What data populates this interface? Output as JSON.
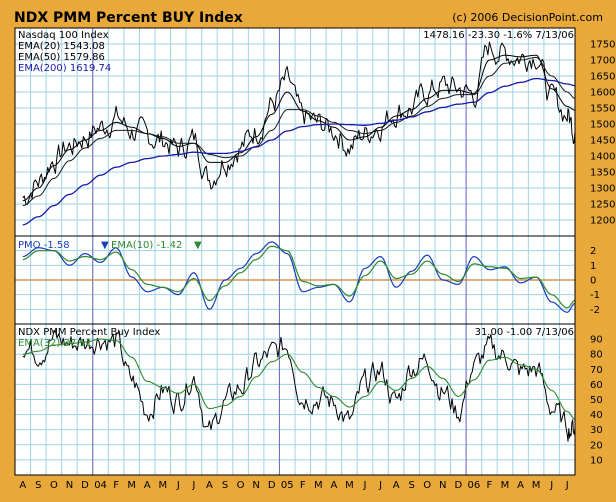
{
  "header": {
    "title": "NDX PMM Percent BUY Index",
    "copyright": "(c) 2006 DecisionPoint.com"
  },
  "colors": {
    "frame": "#e8a93a",
    "plot_bg": "#ffffff",
    "grid": "#9fd3e6",
    "vline": "#6b6bbf",
    "price": "#000000",
    "ema20": "#000000",
    "ema50": "#1a1a1a",
    "ema200": "#1a1aa8",
    "pmo": "#1a3cc0",
    "pmo_ema": "#2e8a2e",
    "zero_line": "#d07f28",
    "buy": "#000000",
    "buy_ema": "#2e8a2e"
  },
  "chart_data": [
    {
      "type": "line",
      "name": "price-panel",
      "title": "Nasdaq 100 Index",
      "readout": "1478.16  -23.30  -1.6%  7/13/06",
      "legend": [
        {
          "label": "Nasdaq 100 Index",
          "color": "#000000"
        },
        {
          "label": "EMA(20) 1543.08",
          "color": "#000000"
        },
        {
          "label": "EMA(50) 1579.86",
          "color": "#000000"
        },
        {
          "label": "EMA(200) 1619.74",
          "color": "#1a1aa8"
        }
      ],
      "ylim": [
        1150,
        1800
      ],
      "yticks": [
        1200,
        1250,
        1300,
        1350,
        1400,
        1450,
        1500,
        1550,
        1600,
        1650,
        1700,
        1750
      ],
      "x_months": [
        "A",
        "S",
        "O",
        "N",
        "D",
        "04",
        "F",
        "M",
        "A",
        "M",
        "J",
        "J",
        "A",
        "S",
        "O",
        "N",
        "D",
        "05",
        "F",
        "M",
        "A",
        "M",
        "J",
        "J",
        "A",
        "S",
        "O",
        "N",
        "D",
        "06",
        "F",
        "M",
        "A",
        "M",
        "J",
        "J"
      ],
      "year_marks": [
        "04",
        "05",
        "06"
      ],
      "series": [
        {
          "name": "Nasdaq 100 Index",
          "x": [
            0,
            1,
            2,
            3,
            4,
            5,
            6,
            7,
            8,
            9,
            10,
            11,
            12,
            13,
            14,
            15,
            16,
            17,
            18,
            19,
            20,
            21,
            22,
            23,
            24,
            25,
            26,
            27,
            28,
            29,
            30,
            31,
            32,
            33,
            34,
            35,
            35.5
          ],
          "values": [
            1270,
            1320,
            1390,
            1430,
            1460,
            1490,
            1520,
            1480,
            1460,
            1450,
            1420,
            1450,
            1330,
            1390,
            1430,
            1480,
            1560,
            1630,
            1520,
            1500,
            1480,
            1430,
            1470,
            1500,
            1540,
            1550,
            1600,
            1620,
            1610,
            1590,
            1740,
            1720,
            1710,
            1720,
            1580,
            1530,
            1478
          ]
        },
        {
          "name": "EMA(20) 1543.08",
          "x": [
            0,
            1,
            2,
            3,
            4,
            5,
            6,
            7,
            8,
            9,
            10,
            11,
            12,
            13,
            14,
            15,
            16,
            17,
            18,
            19,
            20,
            21,
            22,
            23,
            24,
            25,
            26,
            27,
            28,
            29,
            30,
            31,
            32,
            33,
            34,
            35,
            35.5
          ],
          "values": [
            1260,
            1300,
            1370,
            1420,
            1450,
            1480,
            1505,
            1490,
            1470,
            1455,
            1430,
            1440,
            1380,
            1380,
            1410,
            1460,
            1530,
            1600,
            1540,
            1510,
            1490,
            1450,
            1460,
            1490,
            1525,
            1545,
            1580,
            1605,
            1605,
            1595,
            1700,
            1715,
            1710,
            1715,
            1610,
            1555,
            1543
          ]
        },
        {
          "name": "EMA(50) 1579.86",
          "x": [
            0,
            1,
            2,
            3,
            4,
            5,
            6,
            7,
            8,
            9,
            10,
            11,
            12,
            13,
            14,
            15,
            16,
            17,
            18,
            19,
            20,
            21,
            22,
            23,
            24,
            25,
            26,
            27,
            28,
            29,
            30,
            31,
            32,
            33,
            34,
            35,
            35.5
          ],
          "values": [
            1245,
            1275,
            1330,
            1385,
            1425,
            1455,
            1480,
            1480,
            1470,
            1460,
            1440,
            1440,
            1405,
            1395,
            1400,
            1430,
            1480,
            1545,
            1545,
            1525,
            1505,
            1480,
            1470,
            1480,
            1505,
            1525,
            1555,
            1580,
            1592,
            1592,
            1650,
            1690,
            1700,
            1708,
            1650,
            1600,
            1580
          ]
        },
        {
          "name": "EMA(200) 1619.74",
          "x": [
            0,
            1,
            2,
            3,
            4,
            5,
            6,
            7,
            8,
            9,
            10,
            11,
            12,
            13,
            14,
            15,
            16,
            17,
            18,
            19,
            20,
            21,
            22,
            23,
            24,
            25,
            26,
            27,
            28,
            29,
            30,
            31,
            32,
            33,
            34,
            35,
            35.5
          ],
          "values": [
            1185,
            1210,
            1245,
            1280,
            1310,
            1340,
            1365,
            1380,
            1392,
            1400,
            1405,
            1412,
            1408,
            1408,
            1415,
            1428,
            1450,
            1478,
            1492,
            1498,
            1500,
            1498,
            1496,
            1502,
            1512,
            1522,
            1538,
            1552,
            1562,
            1568,
            1598,
            1618,
            1630,
            1642,
            1636,
            1625,
            1620
          ]
        }
      ]
    },
    {
      "type": "line",
      "name": "pmo-panel",
      "legend": [
        {
          "label": "PMO  -1.58",
          "color": "#1a3cc0"
        },
        {
          "label": "EMA(10)  -1.42",
          "color": "#2e8a2e"
        }
      ],
      "ylim": [
        -3,
        3
      ],
      "yticks": [
        -2,
        -1,
        0,
        1,
        2
      ],
      "series": [
        {
          "name": "PMO  -1.58",
          "x": [
            0,
            1,
            2,
            3,
            4,
            5,
            6,
            7,
            8,
            9,
            10,
            11,
            12,
            13,
            14,
            15,
            16,
            17,
            18,
            19,
            20,
            21,
            22,
            23,
            24,
            25,
            26,
            27,
            28,
            29,
            30,
            31,
            32,
            33,
            34,
            35,
            35.5
          ],
          "values": [
            1.6,
            2.2,
            2.0,
            1.0,
            1.8,
            1.2,
            2.2,
            0.2,
            -0.8,
            -0.5,
            -1.0,
            0.5,
            -2.0,
            0.0,
            0.8,
            1.8,
            2.6,
            1.8,
            -0.8,
            -0.5,
            -0.3,
            -1.5,
            0.8,
            1.6,
            -0.5,
            0.6,
            1.7,
            0.0,
            -0.3,
            1.6,
            0.7,
            0.9,
            -0.2,
            0.2,
            -1.5,
            -2.2,
            -1.6
          ]
        },
        {
          "name": "EMA(10)  -1.42",
          "x": [
            0,
            1,
            2,
            3,
            4,
            5,
            6,
            7,
            8,
            9,
            10,
            11,
            12,
            13,
            14,
            15,
            16,
            17,
            18,
            19,
            20,
            21,
            22,
            23,
            24,
            25,
            26,
            27,
            28,
            29,
            30,
            31,
            32,
            33,
            34,
            35,
            35.5
          ],
          "values": [
            1.4,
            2.0,
            2.0,
            1.3,
            1.6,
            1.4,
            1.9,
            0.7,
            -0.3,
            -0.5,
            -0.8,
            0.1,
            -1.4,
            -0.4,
            0.5,
            1.4,
            2.3,
            2.0,
            -0.1,
            -0.4,
            -0.3,
            -1.1,
            0.3,
            1.3,
            0.1,
            0.4,
            1.3,
            0.4,
            -0.1,
            1.1,
            0.9,
            0.8,
            0.1,
            0.2,
            -1.0,
            -1.9,
            -1.4
          ]
        }
      ]
    },
    {
      "type": "line",
      "name": "buy-panel",
      "title": "NDX PMM Percent Buy Index",
      "readout": "31.00  -1.00  7/13/06",
      "legend": [
        {
          "label": "NDX PMM Percent Buy Index",
          "color": "#000000"
        },
        {
          "label": "EMA(32) 37.11",
          "color": "#2e8a2e"
        }
      ],
      "ylim": [
        0,
        100
      ],
      "yticks": [
        10,
        20,
        30,
        40,
        50,
        60,
        70,
        80,
        90
      ],
      "series": [
        {
          "name": "NDX PMM Percent Buy Index",
          "x": [
            0,
            1,
            2,
            3,
            4,
            5,
            6,
            7,
            8,
            9,
            10,
            11,
            12,
            13,
            14,
            15,
            16,
            17,
            18,
            19,
            20,
            21,
            22,
            23,
            24,
            25,
            26,
            27,
            28,
            29,
            30,
            31,
            32,
            33,
            34,
            35,
            35.5
          ],
          "values": [
            85,
            82,
            90,
            87,
            88,
            91,
            88,
            62,
            43,
            56,
            50,
            66,
            28,
            48,
            58,
            73,
            80,
            85,
            52,
            51,
            48,
            35,
            60,
            69,
            48,
            72,
            76,
            56,
            42,
            72,
            83,
            79,
            68,
            70,
            45,
            32,
            31
          ]
        },
        {
          "name": "EMA(32) 37.11",
          "x": [
            0,
            1,
            2,
            3,
            4,
            5,
            6,
            7,
            8,
            9,
            10,
            11,
            12,
            13,
            14,
            15,
            16,
            17,
            18,
            19,
            20,
            21,
            22,
            23,
            24,
            25,
            26,
            27,
            28,
            29,
            30,
            31,
            32,
            33,
            34,
            35,
            35.5
          ],
          "values": [
            80,
            82,
            86,
            87,
            88,
            90,
            89,
            78,
            62,
            58,
            54,
            60,
            44,
            46,
            52,
            65,
            75,
            80,
            68,
            58,
            52,
            45,
            52,
            62,
            56,
            64,
            72,
            64,
            52,
            63,
            76,
            78,
            73,
            70,
            56,
            42,
            37
          ]
        }
      ]
    }
  ]
}
